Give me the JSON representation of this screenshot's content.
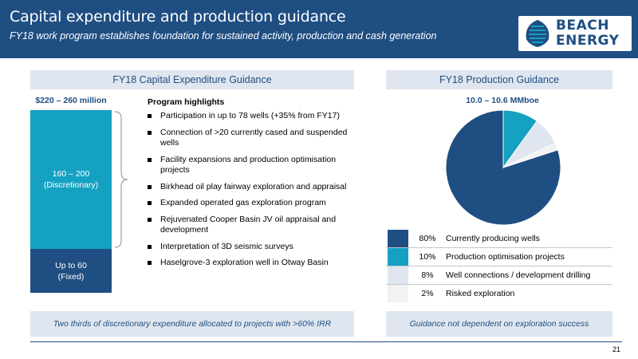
{
  "header": {
    "title": "Capital expenditure and production guidance",
    "subtitle": "FY18 work program establishes foundation for sustained activity, production and cash generation",
    "logo_line1": "BEACH",
    "logo_line2": "ENERGY"
  },
  "capex": {
    "section_title": "FY18 Capital Expenditure Guidance",
    "total_label": "$220 – 260 million",
    "discretionary_range": "160 – 200",
    "discretionary_label": "(Discretionary)",
    "fixed_range": "Up to 60",
    "fixed_label": "(Fixed)"
  },
  "program": {
    "heading": "Program highlights",
    "items": [
      "Participation in up to 78 wells (+35% from FY17)",
      "Connection of >20 currently cased and suspended wells",
      "Facility expansions and production optimisation projects",
      "Birkhead oil play fairway exploration and appraisal",
      "Expanded operated gas exploration program",
      "Rejuvenated Cooper Basin JV oil appraisal and development",
      "Interpretation of 3D seismic surveys",
      "Haselgrove-3 exploration well in Otway Basin"
    ]
  },
  "production": {
    "section_title": "FY18 Production Guidance",
    "total_label": "10.0 – 10.6 MMboe"
  },
  "chart_data": {
    "type": "pie",
    "slices": [
      {
        "label": "Currently producing wells",
        "pct_label": "80%",
        "value": 80,
        "color": "#1f4e82"
      },
      {
        "label": "Production optimisation projects",
        "pct_label": "10%",
        "value": 10,
        "color": "#15a1c1"
      },
      {
        "label": "Well connections / development drilling",
        "pct_label": "8%",
        "value": 8,
        "color": "#dfe6ef"
      },
      {
        "label": "Risked exploration",
        "pct_label": "2%",
        "value": 2,
        "color": "#f2f2f2"
      }
    ]
  },
  "footer": {
    "left_note": "Two thirds of discretionary expenditure allocated to projects with >60% IRR",
    "right_note": "Guidance not dependent on exploration success",
    "page_number": "21"
  }
}
